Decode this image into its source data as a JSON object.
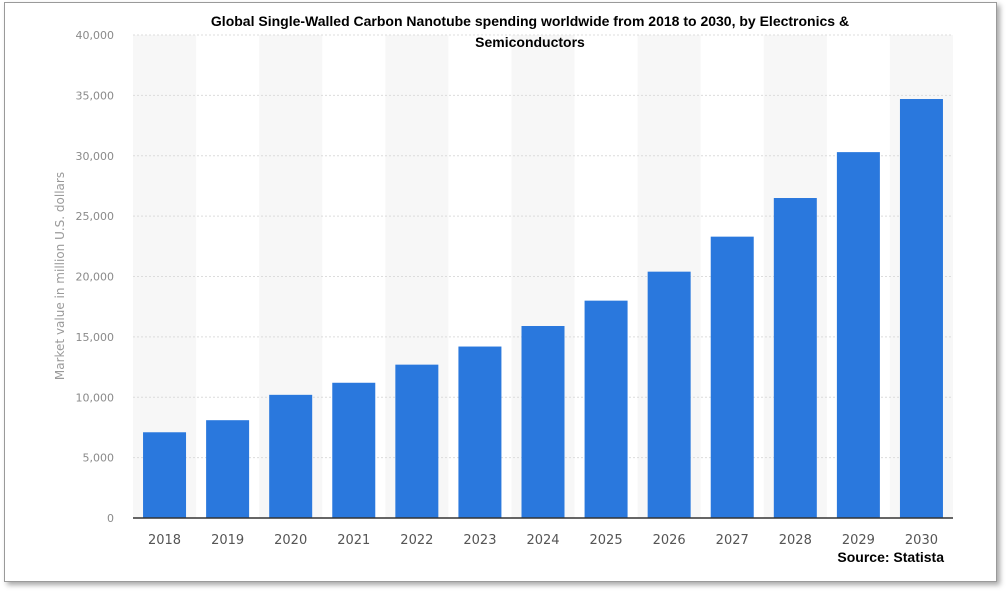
{
  "chart_data": {
    "type": "bar",
    "title_lines": [
      "Global Single-Walled Carbon Nanotube spending worldwide from 2018 to 2030, by Electronics &",
      "Semiconductors"
    ],
    "xlabel": "",
    "ylabel": "Market value in million U.S. dollars",
    "categories": [
      "2018",
      "2019",
      "2020",
      "2021",
      "2022",
      "2023",
      "2024",
      "2025",
      "2026",
      "2027",
      "2028",
      "2029",
      "2030"
    ],
    "values": [
      7100,
      8100,
      10200,
      11200,
      12700,
      14200,
      15900,
      18000,
      20400,
      23300,
      26500,
      30300,
      34700
    ],
    "ylim": [
      0,
      40000
    ],
    "yticks": [
      0,
      5000,
      10000,
      15000,
      20000,
      25000,
      30000,
      35000,
      40000
    ],
    "ytick_labels": [
      "0",
      "5,000",
      "10,000",
      "15,000",
      "20,000",
      "25,000",
      "30,000",
      "35,000",
      "40,000"
    ],
    "bar_color": "#2a78dd",
    "grid": true,
    "source": "Source: Statista"
  }
}
